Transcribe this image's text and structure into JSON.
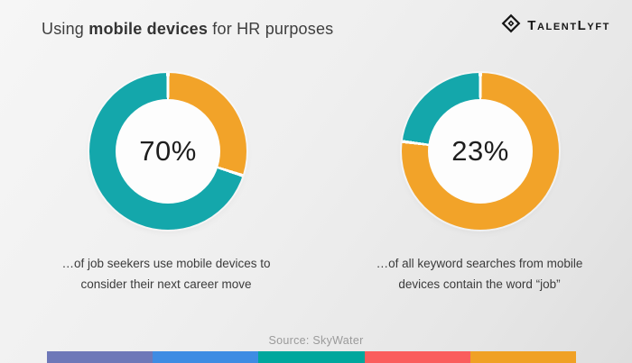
{
  "header": {
    "title": {
      "prefix": "Using ",
      "bold": "mobile devices",
      "suffix": " for HR purposes"
    },
    "logo": {
      "text": "TalentLyft",
      "color": "#161616"
    }
  },
  "chart_data": [
    {
      "type": "pie",
      "variant": "donut",
      "center_label": "70%",
      "values": [
        70,
        30
      ],
      "colors": [
        "#14a7ab",
        "#f2a329"
      ],
      "highlight_color": "#14a7ab",
      "remainder_color": "#f2a329",
      "segments": [
        {
          "color": "#f2a329",
          "from_deg": 0,
          "to_deg": 108
        },
        {
          "color": "#14a7ab",
          "from_deg": 108,
          "to_deg": 360
        }
      ],
      "caption_lines": [
        "…of job seekers use mobile devices to",
        "consider their next career move"
      ]
    },
    {
      "type": "pie",
      "variant": "donut",
      "center_label": "23%",
      "values": [
        23,
        77
      ],
      "colors": [
        "#14a7ab",
        "#f2a329"
      ],
      "highlight_color": "#14a7ab",
      "remainder_color": "#f2a329",
      "segments": [
        {
          "color": "#f2a329",
          "from_deg": 0,
          "to_deg": 277.2
        },
        {
          "color": "#14a7ab",
          "from_deg": 277.2,
          "to_deg": 360
        }
      ],
      "caption_lines": [
        "…of all keyword searches from mobile",
        "devices contain the word “job”"
      ]
    }
  ],
  "footer": {
    "source": "Source: SkyWater",
    "bar_colors": [
      "#6e78b8",
      "#3e8ce3",
      "#00a79d",
      "#fa5d5d",
      "#f0a125"
    ]
  }
}
